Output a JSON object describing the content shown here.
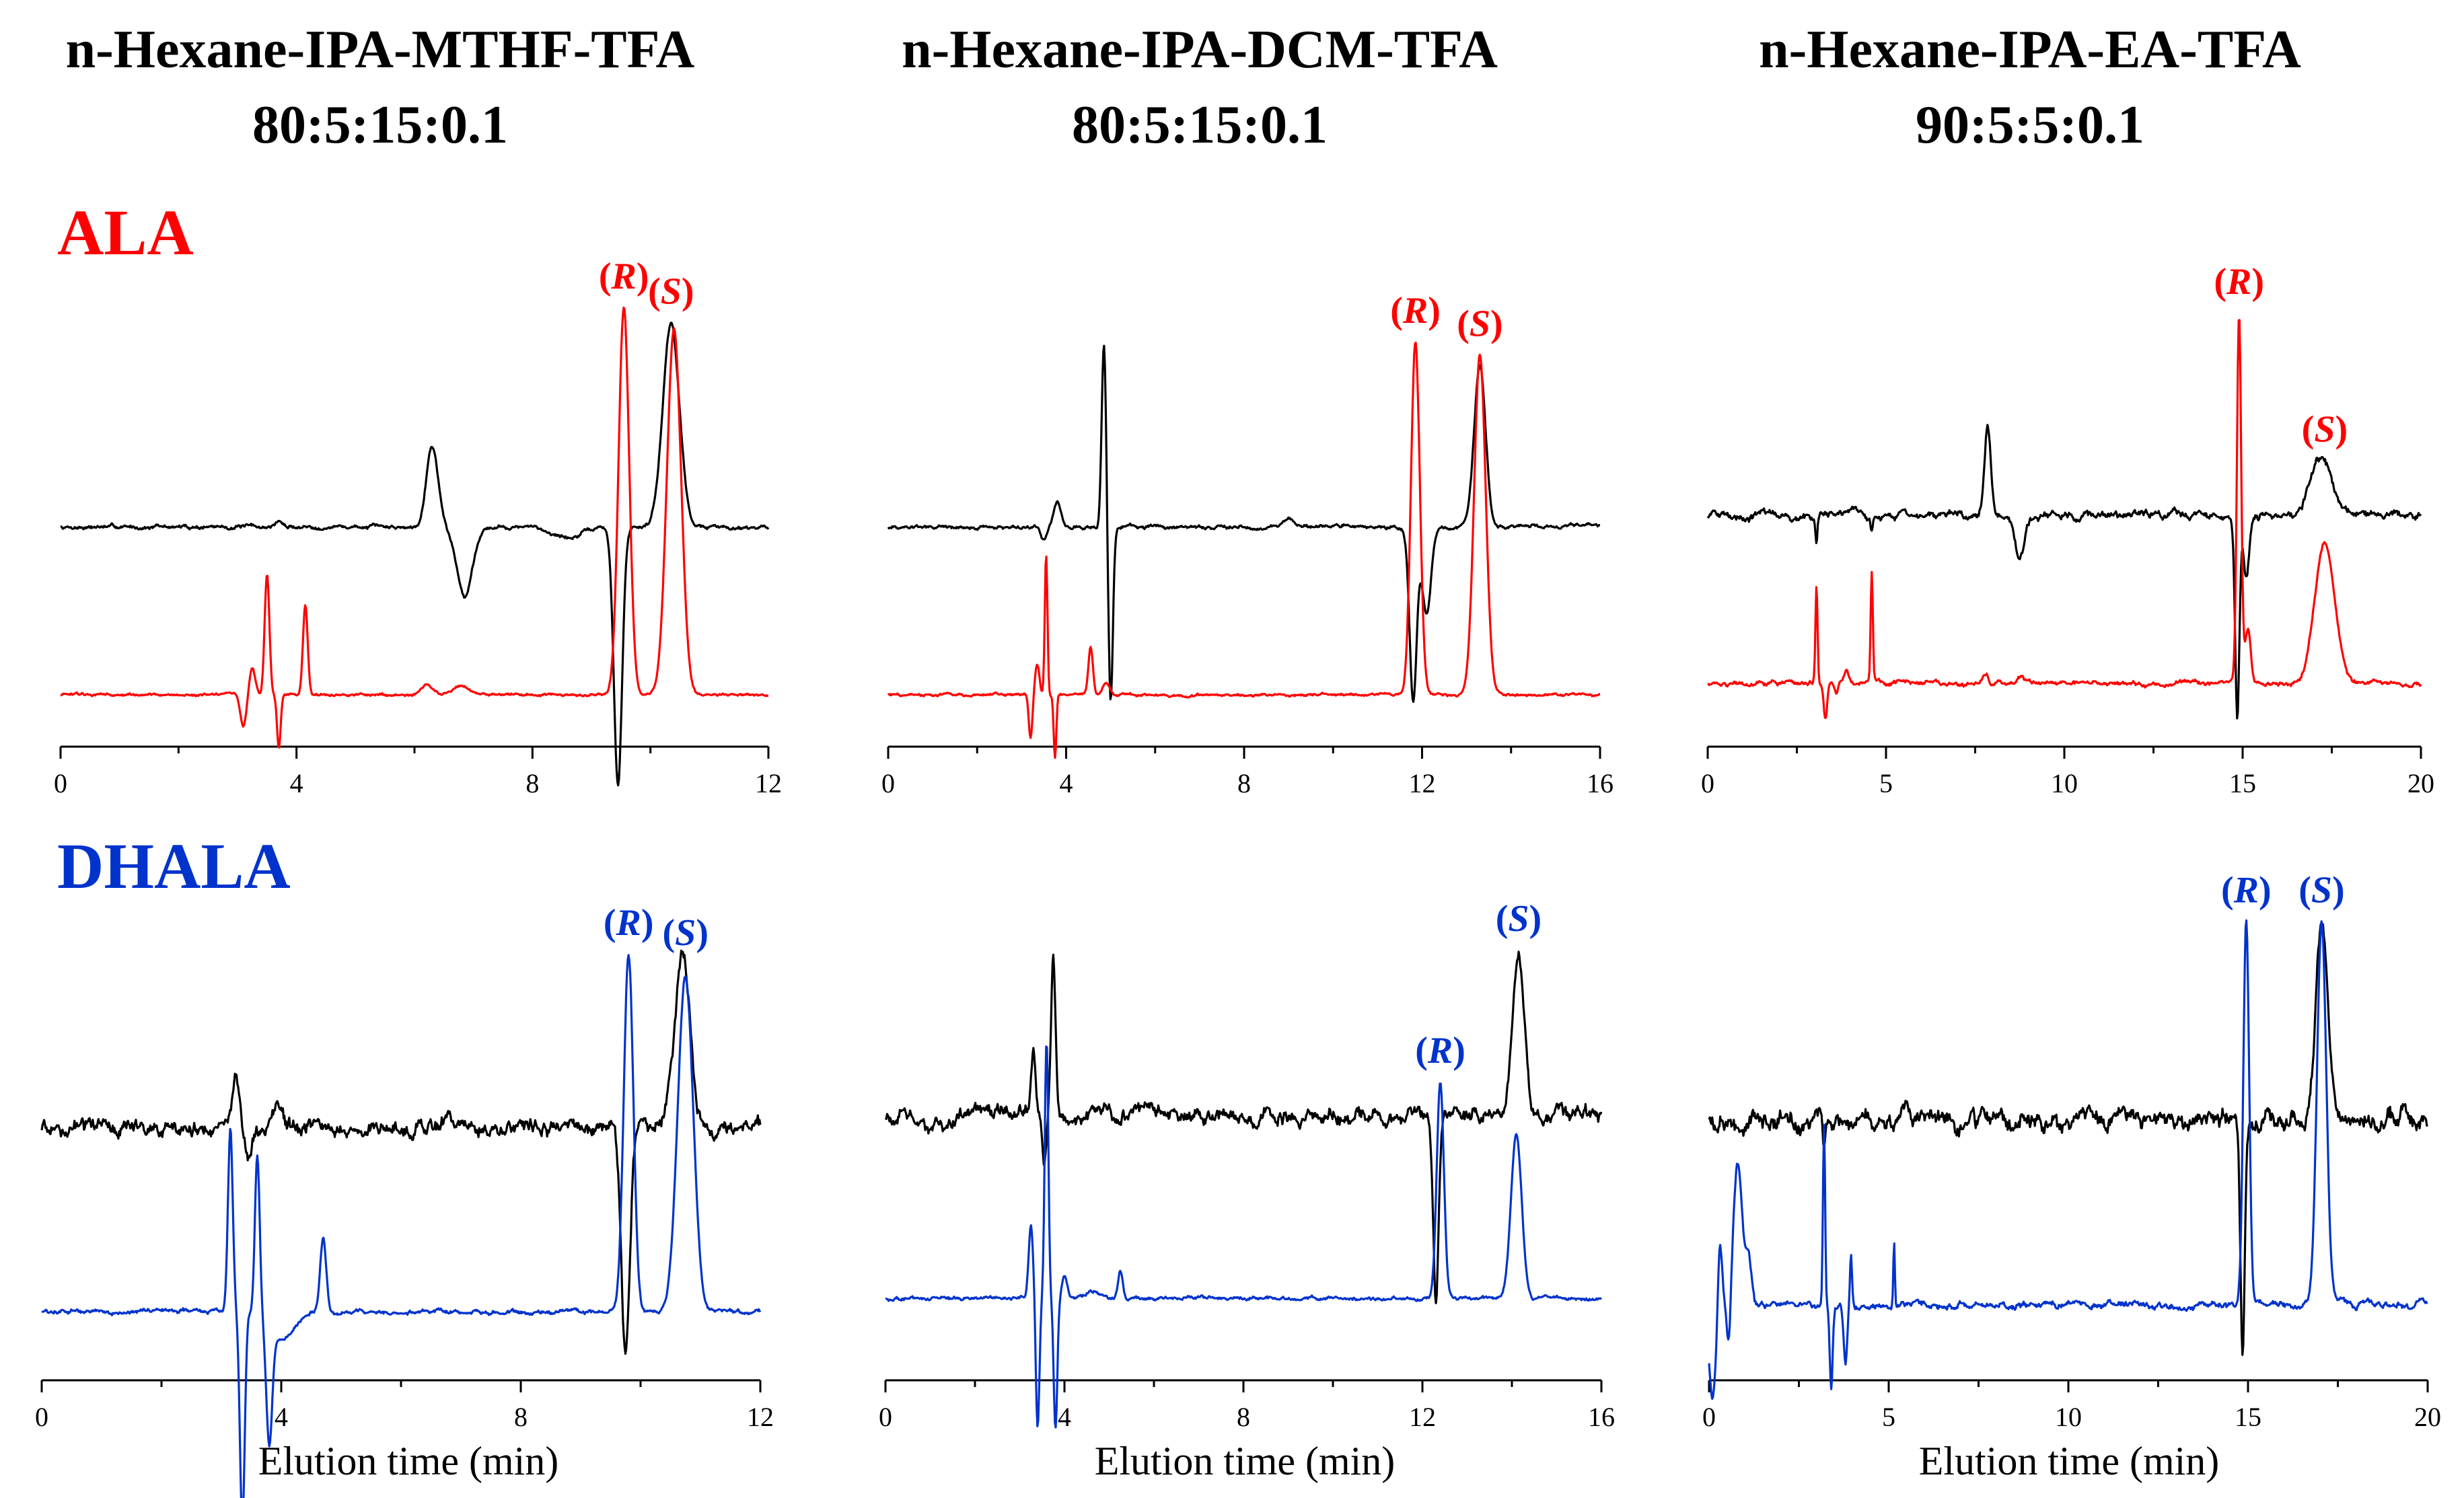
{
  "colors": {
    "ala": "#ff0000",
    "dhala": "#0033cc",
    "cd_trace": "#000000",
    "axis": "#000000"
  },
  "columns": [
    {
      "title": "n-Hexane-IPA-MTHF-TFA",
      "ratio": "80:5:15:0.1"
    },
    {
      "title": "n-Hexane-IPA-DCM-TFA",
      "ratio": "80:5:15:0.1"
    },
    {
      "title": "n-Hexane-IPA-EA-TFA",
      "ratio": "90:5:5:0.1"
    }
  ],
  "row_labels": [
    "ALA",
    "DHALA"
  ],
  "peak_label_r": "(R)",
  "peak_label_s": "(S)",
  "xlabel": "Elution time (min)",
  "chart_data": [
    {
      "type": "line",
      "row": "ALA",
      "column": "n-Hexane-IPA-MTHF-TFA 80:5:15:0.1",
      "xlabel": "",
      "xlim": [
        0,
        12
      ],
      "xticks": [
        0,
        4,
        8,
        12
      ],
      "series": [
        {
          "name": "CD (black)",
          "color": "#000000",
          "baseline": 0.78,
          "noise": 0.006,
          "peaks": [
            [
              3.7,
              0.03,
              0.05
            ],
            [
              6.3,
              0.38,
              0.1
            ],
            [
              6.85,
              -0.32,
              0.13
            ],
            [
              9.45,
              -1.2,
              0.07
            ],
            [
              10.35,
              0.95,
              0.14
            ],
            [
              8.6,
              -0.05,
              0.25
            ]
          ]
        },
        {
          "name": "UV (red)",
          "color": "#ff0000",
          "baseline": 0.0,
          "noise": 0.004,
          "peaks": [
            [
              3.1,
              -0.15,
              0.05
            ],
            [
              3.25,
              0.12,
              0.05
            ],
            [
              3.5,
              0.56,
              0.04
            ],
            [
              3.7,
              -0.25,
              0.03
            ],
            [
              4.15,
              0.42,
              0.04
            ],
            [
              6.2,
              0.05,
              0.1
            ],
            [
              6.8,
              0.04,
              0.15
            ],
            [
              9.55,
              1.8,
              0.09
            ],
            [
              10.4,
              1.7,
              0.12
            ]
          ]
        }
      ],
      "peak_labels": [
        {
          "text": "(R)",
          "x": 9.55
        },
        {
          "text": "(S)",
          "x": 10.35
        }
      ]
    },
    {
      "type": "line",
      "row": "ALA",
      "column": "n-Hexane-IPA-DCM-TFA 80:5:15:0.1",
      "xlabel": "",
      "xlim": [
        0,
        16
      ],
      "xticks": [
        0,
        4,
        8,
        12,
        16
      ],
      "series": [
        {
          "name": "CD (black)",
          "color": "#000000",
          "baseline": 0.78,
          "noise": 0.006,
          "peaks": [
            [
              3.8,
              0.12,
              0.08
            ],
            [
              3.5,
              -0.06,
              0.06
            ],
            [
              4.85,
              0.85,
              0.05
            ],
            [
              5.0,
              -0.82,
              0.05
            ],
            [
              11.8,
              -0.8,
              0.08
            ],
            [
              12.1,
              -0.4,
              0.1
            ],
            [
              13.3,
              0.75,
              0.13
            ],
            [
              9.0,
              0.03,
              0.1
            ]
          ]
        },
        {
          "name": "UV (red)",
          "color": "#ff0000",
          "baseline": 0.0,
          "noise": 0.004,
          "peaks": [
            [
              3.2,
              -0.2,
              0.04
            ],
            [
              3.35,
              0.15,
              0.05
            ],
            [
              3.55,
              0.66,
              0.03
            ],
            [
              3.75,
              -0.3,
              0.03
            ],
            [
              4.55,
              0.22,
              0.05
            ],
            [
              4.9,
              0.06,
              0.08
            ],
            [
              11.85,
              1.64,
              0.1
            ],
            [
              13.3,
              1.58,
              0.13
            ]
          ]
        }
      ],
      "peak_labels": [
        {
          "text": "(R)",
          "x": 11.85
        },
        {
          "text": "(S)",
          "x": 13.3
        }
      ]
    },
    {
      "type": "line",
      "row": "ALA",
      "column": "n-Hexane-IPA-EA-TFA 90:5:5:0.1",
      "xlabel": "",
      "xlim": [
        0,
        20
      ],
      "xticks": [
        0,
        5,
        10,
        15,
        20
      ],
      "series": [
        {
          "name": "CD (black)",
          "color": "#000000",
          "baseline": 0.78,
          "noise": 0.012,
          "peaks": [
            [
              3.05,
              -0.12,
              0.03
            ],
            [
              4.6,
              -0.06,
              0.03
            ],
            [
              7.85,
              0.42,
              0.09
            ],
            [
              8.75,
              -0.22,
              0.14
            ],
            [
              14.85,
              -0.95,
              0.06
            ],
            [
              15.1,
              -0.3,
              0.08
            ],
            [
              17.2,
              0.27,
              0.3
            ]
          ]
        },
        {
          "name": "UV (red)",
          "color": "#ff0000",
          "baseline": 0.0,
          "noise": 0.007,
          "peaks": [
            [
              3.05,
              0.46,
              0.03
            ],
            [
              3.3,
              -0.17,
              0.05
            ],
            [
              3.6,
              -0.05,
              0.05
            ],
            [
              3.9,
              0.06,
              0.06
            ],
            [
              4.6,
              0.5,
              0.03
            ],
            [
              7.8,
              0.05,
              0.08
            ],
            [
              8.8,
              0.03,
              0.1
            ],
            [
              14.9,
              1.72,
              0.06
            ],
            [
              15.15,
              0.25,
              0.08
            ],
            [
              17.3,
              0.66,
              0.28
            ]
          ]
        }
      ],
      "peak_labels": [
        {
          "text": "(R)",
          "x": 14.9
        },
        {
          "text": "(S)",
          "x": 17.3
        }
      ]
    },
    {
      "type": "line",
      "row": "DHALA",
      "column": "n-Hexane-IPA-MTHF-TFA 80:5:15:0.1",
      "xlabel": "Elution time (min)",
      "xlim": [
        0,
        12
      ],
      "xticks": [
        0,
        4,
        8,
        12
      ],
      "series": [
        {
          "name": "CD (black)",
          "color": "#000000",
          "baseline": 0.78,
          "noise": 0.022,
          "peaks": [
            [
              3.25,
              0.2,
              0.06
            ],
            [
              3.45,
              -0.1,
              0.06
            ],
            [
              3.9,
              0.08,
              0.1
            ],
            [
              6.8,
              0.05,
              0.08
            ],
            [
              9.75,
              -0.95,
              0.07
            ],
            [
              10.7,
              0.75,
              0.13
            ]
          ]
        },
        {
          "name": "UV (blue)",
          "color": "#0033cc",
          "baseline": 0.0,
          "noise": 0.006,
          "peaks": [
            [
              3.15,
              0.78,
              0.04
            ],
            [
              3.35,
              -0.9,
              0.04
            ],
            [
              3.6,
              0.68,
              0.04
            ],
            [
              3.8,
              -0.5,
              0.05
            ],
            [
              4.0,
              -0.12,
              0.2
            ],
            [
              4.7,
              0.32,
              0.05
            ],
            [
              9.8,
              1.52,
              0.08
            ],
            [
              10.75,
              1.42,
              0.13
            ]
          ]
        }
      ],
      "peak_labels": [
        {
          "text": "(R)",
          "x": 9.8
        },
        {
          "text": "(S)",
          "x": 10.75
        }
      ]
    },
    {
      "type": "line",
      "row": "DHALA",
      "column": "n-Hexane-IPA-DCM-TFA 80:5:15:0.1",
      "xlabel": "Elution time (min)",
      "xlim": [
        0,
        16
      ],
      "xticks": [
        0,
        4,
        8,
        12,
        16
      ],
      "series": [
        {
          "name": "CD (black)",
          "color": "#000000",
          "baseline": 0.78,
          "noise": 0.022,
          "peaks": [
            [
              1.0,
              -0.06,
              0.4
            ],
            [
              3.3,
              0.25,
              0.05
            ],
            [
              3.75,
              0.68,
              0.05
            ],
            [
              3.55,
              -0.2,
              0.05
            ],
            [
              12.3,
              -0.78,
              0.06
            ],
            [
              14.15,
              0.7,
              0.13
            ]
          ]
        },
        {
          "name": "UV (blue)",
          "color": "#0033cc",
          "baseline": 0.0,
          "noise": 0.005,
          "peaks": [
            [
              3.25,
              0.3,
              0.05
            ],
            [
              3.4,
              -0.55,
              0.04
            ],
            [
              3.6,
              1.1,
              0.04
            ],
            [
              3.8,
              -0.55,
              0.04
            ],
            [
              4.0,
              0.1,
              0.06
            ],
            [
              4.6,
              0.03,
              0.15
            ],
            [
              5.25,
              0.12,
              0.05
            ],
            [
              12.4,
              0.92,
              0.08
            ],
            [
              14.1,
              0.7,
              0.12
            ]
          ]
        }
      ],
      "peak_labels": [
        {
          "text": "(R)",
          "x": 12.4
        },
        {
          "text": "(S)",
          "x": 14.15
        }
      ]
    },
    {
      "type": "line",
      "row": "DHALA",
      "column": "n-Hexane-IPA-EA-TFA 90:5:5:0.1",
      "xlabel": "Elution time (min)",
      "xlim": [
        0,
        20
      ],
      "xticks": [
        0,
        5,
        10,
        15,
        20
      ],
      "series": [
        {
          "name": "CD (black)",
          "color": "#000000",
          "baseline": 0.78,
          "noise": 0.028,
          "peaks": [
            [
              0.9,
              -0.1,
              0.1
            ],
            [
              3.2,
              -0.15,
              0.04
            ],
            [
              14.85,
              -0.98,
              0.06
            ],
            [
              17.05,
              0.8,
              0.17
            ]
          ]
        },
        {
          "name": "UV (blue)",
          "color": "#0033cc",
          "baseline": 0.0,
          "noise": 0.01,
          "peaks": [
            [
              0.1,
              -0.4,
              0.1
            ],
            [
              0.3,
              0.3,
              0.06
            ],
            [
              0.55,
              -0.2,
              0.05
            ],
            [
              0.8,
              0.6,
              0.12
            ],
            [
              1.1,
              0.2,
              0.08
            ],
            [
              3.2,
              0.77,
              0.03
            ],
            [
              3.4,
              -0.35,
              0.04
            ],
            [
              3.8,
              -0.25,
              0.05
            ],
            [
              3.95,
              0.2,
              0.03
            ],
            [
              5.15,
              0.28,
              0.02
            ],
            [
              14.95,
              1.63,
              0.08
            ],
            [
              17.05,
              1.63,
              0.13
            ]
          ]
        }
      ],
      "peak_labels": [
        {
          "text": "(R)",
          "x": 14.95
        },
        {
          "text": "(S)",
          "x": 17.05
        }
      ]
    }
  ]
}
